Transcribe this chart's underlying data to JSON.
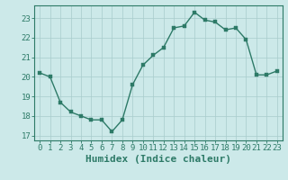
{
  "x": [
    0,
    1,
    2,
    3,
    4,
    5,
    6,
    7,
    8,
    9,
    10,
    11,
    12,
    13,
    14,
    15,
    16,
    17,
    18,
    19,
    20,
    21,
    22,
    23
  ],
  "y": [
    20.2,
    20.0,
    18.7,
    18.2,
    18.0,
    17.8,
    17.8,
    17.2,
    17.8,
    19.6,
    20.6,
    21.1,
    21.5,
    22.5,
    22.6,
    23.3,
    22.9,
    22.8,
    22.4,
    22.5,
    21.9,
    20.1,
    20.1,
    20.3
  ],
  "xlim": [
    -0.5,
    23.5
  ],
  "ylim": [
    16.75,
    23.65
  ],
  "yticks": [
    17,
    18,
    19,
    20,
    21,
    22,
    23
  ],
  "xticks": [
    0,
    1,
    2,
    3,
    4,
    5,
    6,
    7,
    8,
    9,
    10,
    11,
    12,
    13,
    14,
    15,
    16,
    17,
    18,
    19,
    20,
    21,
    22,
    23
  ],
  "xlabel": "Humidex (Indice chaleur)",
  "line_color": "#2d7a67",
  "bg_color": "#cce9e9",
  "grid_color": "#a8cccc",
  "spine_color": "#2d7a67",
  "tick_label_fontsize": 6.5,
  "xlabel_fontsize": 8,
  "marker_size": 2.5,
  "linewidth": 1.0
}
